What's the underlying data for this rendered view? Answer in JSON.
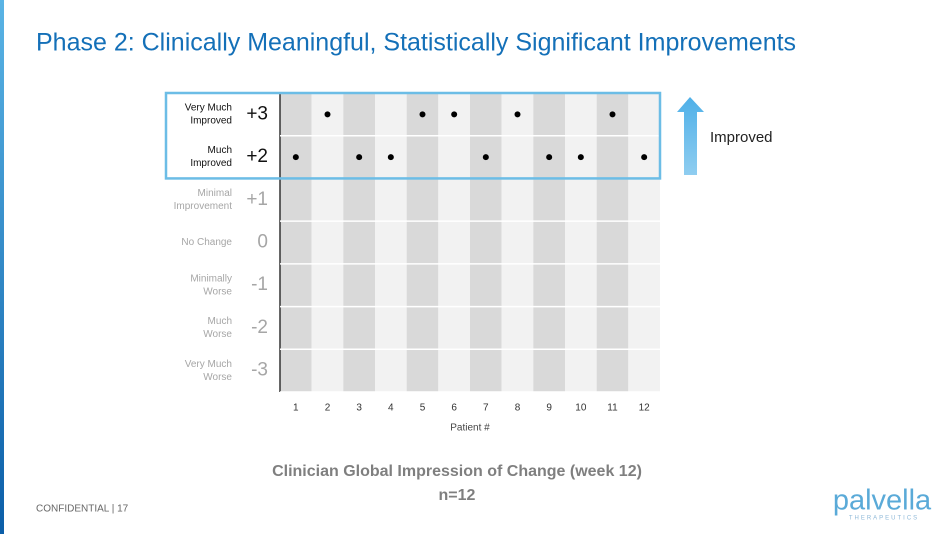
{
  "chart_data": {
    "type": "dot",
    "title": "Phase 2: Clinically Meaningful, Statistically Significant Improvements",
    "categories": [
      "1",
      "2",
      "3",
      "4",
      "5",
      "6",
      "7",
      "8",
      "9",
      "10",
      "11",
      "12"
    ],
    "values": [
      2,
      3,
      2,
      2,
      3,
      3,
      2,
      3,
      2,
      2,
      3,
      2
    ],
    "color": "#000000",
    "ylim": [
      -3.5,
      3.5
    ],
    "yticks": [
      {
        "value": 3,
        "label": "+3"
      },
      {
        "value": 2,
        "label": "+2"
      },
      {
        "value": 1,
        "label": "+1"
      },
      0,
      -1,
      -2,
      -3
    ],
    "ytick_descriptions": [
      [
        "Very Much",
        "Improved"
      ],
      [
        "Much",
        "Improved"
      ],
      [
        "Minimal",
        "Improvement"
      ],
      [
        "No Change"
      ],
      [
        "Minimally",
        "Worse"
      ],
      [
        "Much",
        "Worse"
      ],
      [
        "Very Much",
        "Worse"
      ]
    ],
    "xlabel": "Patient #",
    "annotation": "Improved",
    "caption": "Clinician Global Impression of Change (week 12)",
    "caption_sub": "n=12",
    "grid": true
  },
  "footer": "CONFIDENTIAL | 17",
  "logo": {
    "name": "palvella",
    "sub": "THERAPEUTICS"
  }
}
